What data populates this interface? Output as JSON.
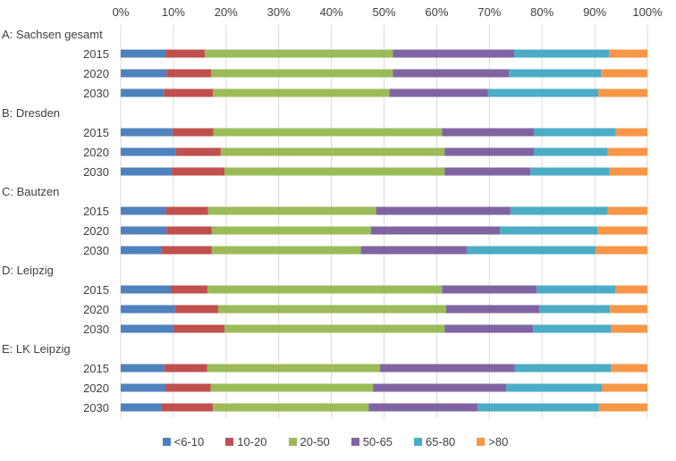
{
  "chart_data": {
    "type": "bar",
    "orientation": "horizontal",
    "stacked": true,
    "xlim": [
      0,
      100
    ],
    "x_ticks": [
      "0%",
      "10%",
      "20%",
      "30%",
      "40%",
      "50%",
      "60%",
      "70%",
      "80%",
      "90%",
      "100%"
    ],
    "series": [
      {
        "name": "<6-10",
        "color": "#4F81BD"
      },
      {
        "name": "10-20",
        "color": "#C0504D"
      },
      {
        "name": "20-50",
        "color": "#9BBB59"
      },
      {
        "name": "50-65",
        "color": "#8064A2"
      },
      {
        "name": "65-80",
        "color": "#4BACC6"
      },
      {
        "name": ">80",
        "color": "#F79646"
      }
    ],
    "groups": [
      {
        "label": "A: Sachsen gesamt",
        "rows": [
          {
            "year": "2015",
            "values": [
              8.5,
              7.5,
              35.7,
              23.0,
              18.0,
              7.3
            ]
          },
          {
            "year": "2020",
            "values": [
              8.7,
              8.5,
              34.5,
              22.0,
              17.5,
              8.8
            ]
          },
          {
            "year": "2030",
            "values": [
              8.2,
              9.3,
              33.5,
              18.7,
              21.0,
              9.3
            ]
          }
        ]
      },
      {
        "label": "B: Dresden",
        "rows": [
          {
            "year": "2015",
            "values": [
              9.8,
              7.8,
              43.4,
              17.5,
              15.5,
              6.0
            ]
          },
          {
            "year": "2020",
            "values": [
              10.5,
              8.5,
              42.5,
              17.0,
              14.0,
              7.5
            ]
          },
          {
            "year": "2030",
            "values": [
              9.7,
              10.0,
              41.8,
              16.3,
              15.0,
              7.2
            ]
          }
        ]
      },
      {
        "label": "C: Bautzen",
        "rows": [
          {
            "year": "2015",
            "values": [
              8.6,
              8.0,
              31.9,
              25.5,
              18.5,
              7.5
            ]
          },
          {
            "year": "2020",
            "values": [
              8.7,
              8.6,
              30.2,
              24.5,
              18.5,
              9.5
            ]
          },
          {
            "year": "2030",
            "values": [
              7.8,
              9.5,
              28.3,
              20.1,
              24.5,
              9.8
            ]
          }
        ]
      },
      {
        "label": "D: Leipzig",
        "rows": [
          {
            "year": "2015",
            "values": [
              9.5,
              7.0,
              44.5,
              18.0,
              15.0,
              6.0
            ]
          },
          {
            "year": "2020",
            "values": [
              10.3,
              8.2,
              43.3,
              17.7,
              13.4,
              7.1
            ]
          },
          {
            "year": "2030",
            "values": [
              10.0,
              9.7,
              41.8,
              16.8,
              14.8,
              6.9
            ]
          }
        ]
      },
      {
        "label": "E: LK Leipzig",
        "rows": [
          {
            "year": "2015",
            "values": [
              8.3,
              8.1,
              32.8,
              25.6,
              18.3,
              6.9
            ]
          },
          {
            "year": "2020",
            "values": [
              8.5,
              8.6,
              30.8,
              25.3,
              18.2,
              8.6
            ]
          },
          {
            "year": "2030",
            "values": [
              7.8,
              9.7,
              29.6,
              20.7,
              23.0,
              9.2
            ]
          }
        ]
      }
    ]
  }
}
